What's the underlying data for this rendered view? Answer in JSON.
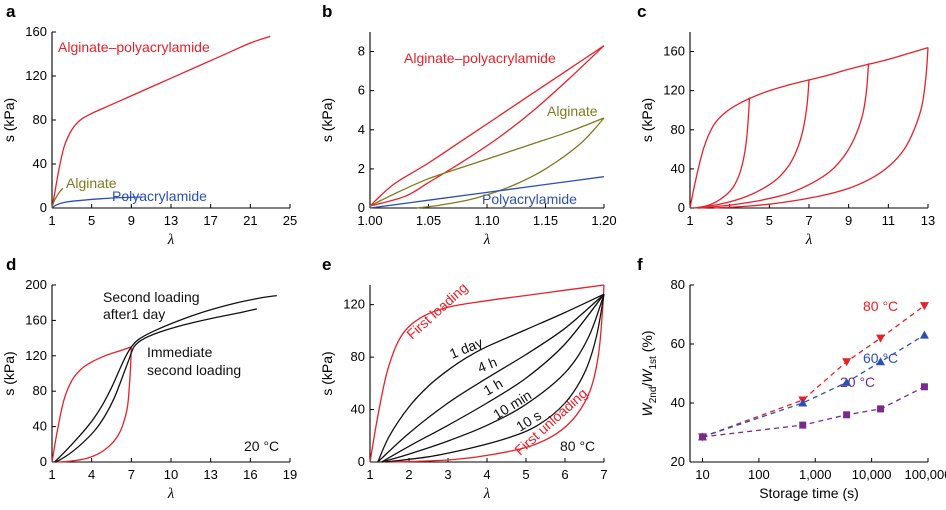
{
  "colors": {
    "red": "#e8202a",
    "olive": "#7f7a1e",
    "blue": "#2c4fb5",
    "black": "#111111",
    "purple": "#7a2a8c"
  },
  "panels": [
    {
      "letter": "a"
    },
    {
      "letter": "b"
    },
    {
      "letter": "c"
    },
    {
      "letter": "d"
    },
    {
      "letter": "e"
    },
    {
      "letter": "f"
    }
  ],
  "chart_data": [
    {
      "panel": "a",
      "type": "line",
      "xlabel": "λ",
      "ylabel": "s (kPa)",
      "xlim": [
        1,
        25
      ],
      "ylim": [
        0,
        160
      ],
      "xticks": [
        1,
        5,
        9,
        13,
        17,
        21,
        25
      ],
      "yticks": [
        0,
        40,
        80,
        120,
        160
      ],
      "series": [
        {
          "name": "Alginate–polyacrylamide",
          "color": "red",
          "x": [
            1,
            1.3,
            1.7,
            2.2,
            2.8,
            3.4,
            4,
            5,
            6,
            8,
            10,
            13,
            16,
            19,
            21,
            23
          ],
          "y": [
            0,
            15,
            35,
            55,
            68,
            76,
            81,
            86,
            90,
            98,
            106,
            118,
            130,
            142,
            150,
            156
          ]
        },
        {
          "name": "Alginate",
          "color": "olive",
          "x": [
            1,
            1.2,
            1.5,
            1.8,
            2.1
          ],
          "y": [
            0,
            6,
            11,
            15,
            18
          ]
        },
        {
          "name": "Polyacrylamide",
          "color": "blue",
          "x": [
            1,
            1.5,
            2.5,
            4,
            6,
            8,
            10
          ],
          "y": [
            0,
            3,
            5.5,
            7,
            8.5,
            9.5,
            10
          ]
        }
      ],
      "labels": [
        {
          "text": "Alginate–polyacrylamide",
          "color": "red"
        },
        {
          "text": "Alginate",
          "color": "olive"
        },
        {
          "text": "Polyacrylamide",
          "color": "blue"
        }
      ]
    },
    {
      "panel": "b",
      "type": "line",
      "xlabel": "λ",
      "ylabel": "s (kPa)",
      "xlim": [
        1.0,
        1.2
      ],
      "ylim": [
        0,
        9
      ],
      "xticks": [
        "1.00",
        "1.05",
        "1.10",
        "1.15",
        "1.20"
      ],
      "yticks": [
        0,
        2,
        4,
        6,
        8
      ],
      "series": [
        {
          "name": "Alginate–polyacrylamide loading",
          "color": "red",
          "x": [
            1.0,
            1.02,
            1.05,
            1.08,
            1.11,
            1.14,
            1.17,
            1.2
          ],
          "y": [
            0.1,
            1.2,
            2.3,
            3.5,
            4.7,
            5.9,
            7.1,
            8.3
          ]
        },
        {
          "name": "Alginate–polyacrylamide unloading",
          "color": "red",
          "x": [
            1.2,
            1.17,
            1.14,
            1.11,
            1.08,
            1.05,
            1.03,
            1.0
          ],
          "y": [
            8.3,
            6.6,
            5.0,
            3.6,
            2.4,
            1.3,
            0.6,
            0.1
          ]
        },
        {
          "name": "Alginate loading",
          "color": "olive",
          "x": [
            1.0,
            1.02,
            1.05,
            1.08,
            1.11,
            1.14,
            1.17,
            1.2
          ],
          "y": [
            0.1,
            0.7,
            1.5,
            2.1,
            2.7,
            3.3,
            3.9,
            4.6
          ]
        },
        {
          "name": "Alginate unloading",
          "color": "olive",
          "x": [
            1.2,
            1.18,
            1.15,
            1.12,
            1.09,
            1.06,
            1.04
          ],
          "y": [
            4.6,
            3.3,
            2.0,
            1.1,
            0.5,
            0.15,
            0
          ]
        },
        {
          "name": "Polyacrylamide",
          "color": "blue",
          "x": [
            1.0,
            1.05,
            1.1,
            1.15,
            1.2
          ],
          "y": [
            0,
            0.4,
            0.8,
            1.2,
            1.6
          ]
        }
      ],
      "labels": [
        {
          "text": "Alginate–polyacrylamide",
          "color": "red"
        },
        {
          "text": "Alginate",
          "color": "olive"
        },
        {
          "text": "Polyacrylamide",
          "color": "blue"
        }
      ]
    },
    {
      "panel": "c",
      "type": "line",
      "xlabel": "λ",
      "ylabel": "s (kPa)",
      "xlim": [
        1,
        13
      ],
      "ylim": [
        0,
        180
      ],
      "xticks": [
        1,
        3,
        5,
        7,
        9,
        11,
        13
      ],
      "yticks": [
        0,
        40,
        80,
        120,
        160
      ],
      "series": [
        {
          "name": "loading envelope",
          "color": "red",
          "x": [
            1,
            1.3,
            1.7,
            2.2,
            2.8,
            3.4,
            4,
            5,
            6,
            7,
            8,
            9,
            10,
            11,
            12,
            13
          ],
          "y": [
            0,
            30,
            62,
            85,
            98,
            106,
            112,
            120,
            126,
            131,
            136,
            142,
            147,
            152,
            158,
            164
          ]
        },
        {
          "name": "unloading to 4",
          "color": "red",
          "x": [
            4,
            3.95,
            3.85,
            3.7,
            3.5,
            3.2,
            2.8,
            2.3,
            1.8,
            1.2
          ],
          "y": [
            113,
            95,
            70,
            50,
            35,
            22,
            13,
            6,
            2,
            0
          ]
        },
        {
          "name": "unloading to 7",
          "color": "red",
          "x": [
            7,
            6.9,
            6.7,
            6.4,
            6,
            5.4,
            4.6,
            3.6,
            2.5,
            1.3
          ],
          "y": [
            131,
            105,
            80,
            60,
            44,
            30,
            19,
            10,
            4,
            0
          ]
        },
        {
          "name": "unloading to 10",
          "color": "red",
          "x": [
            10,
            9.9,
            9.7,
            9.3,
            8.8,
            8.1,
            7.2,
            6,
            4.6,
            3,
            1.5
          ],
          "y": [
            148,
            120,
            95,
            72,
            54,
            38,
            26,
            15,
            8,
            3,
            0
          ]
        },
        {
          "name": "unloading to 13",
          "color": "red",
          "x": [
            13,
            12.9,
            12.7,
            12.3,
            11.8,
            11.1,
            10.2,
            9,
            7.5,
            5.8,
            4,
            2.2
          ],
          "y": [
            164,
            135,
            105,
            80,
            60,
            44,
            31,
            20,
            12,
            6,
            2,
            0
          ]
        }
      ]
    },
    {
      "panel": "d",
      "type": "line",
      "xlabel": "λ",
      "ylabel": "s (kPa)",
      "xlim": [
        1,
        19
      ],
      "ylim": [
        0,
        200
      ],
      "xticks": [
        1,
        4,
        7,
        10,
        13,
        16,
        19
      ],
      "yticks": [
        0,
        40,
        80,
        120,
        160,
        200
      ],
      "series": [
        {
          "name": "First loading",
          "color": "red",
          "x": [
            1,
            1.4,
            1.9,
            2.5,
            3.2,
            4,
            5,
            6,
            7
          ],
          "y": [
            0,
            35,
            70,
            92,
            105,
            113,
            120,
            125,
            130
          ]
        },
        {
          "name": "First unloading",
          "color": "red",
          "x": [
            7,
            6.95,
            6.85,
            6.7,
            6.4,
            6,
            5.4,
            4.6,
            3.6,
            2.4,
            1.3
          ],
          "y": [
            130,
            110,
            85,
            62,
            44,
            30,
            19,
            10,
            4,
            1,
            0
          ]
        },
        {
          "name": "Immediate second loading",
          "color": "black",
          "x": [
            1.3,
            2.2,
            3.2,
            4.2,
            5,
            5.7,
            6.3,
            6.8,
            7.2,
            7.8,
            9,
            11,
            13,
            15,
            16.5
          ],
          "y": [
            0,
            8,
            20,
            35,
            52,
            72,
            95,
            115,
            130,
            138,
            146,
            155,
            162,
            168,
            173
          ]
        },
        {
          "name": "Second loading after 1 day",
          "color": "black",
          "x": [
            1.2,
            2,
            3,
            4,
            4.8,
            5.5,
            6.1,
            6.6,
            7.1,
            7.7,
            9,
            11,
            13,
            15,
            17,
            18
          ],
          "y": [
            0,
            12,
            28,
            46,
            64,
            84,
            104,
            120,
            132,
            140,
            150,
            162,
            172,
            180,
            186,
            188
          ]
        }
      ],
      "labels": [
        {
          "text": "Second loading",
          "color": "black"
        },
        {
          "text": "after1 day",
          "color": "black"
        },
        {
          "text": "Immediate",
          "color": "black"
        },
        {
          "text": "second loading",
          "color": "black"
        },
        {
          "text": "20 °C",
          "color": "black"
        }
      ]
    },
    {
      "panel": "e",
      "type": "line",
      "xlabel": "λ",
      "ylabel": "s (kPa)",
      "xlim": [
        1,
        7
      ],
      "ylim": [
        0,
        135
      ],
      "xticks": [
        1,
        2,
        3,
        4,
        5,
        6,
        7
      ],
      "yticks": [
        0,
        40,
        80,
        120
      ],
      "series": [
        {
          "name": "First loading",
          "color": "red",
          "x": [
            1,
            1.2,
            1.45,
            1.8,
            2.3,
            3,
            4,
            5,
            6,
            7
          ],
          "y": [
            0,
            35,
            70,
            96,
            110,
            118,
            123,
            127,
            131,
            135
          ]
        },
        {
          "name": "First unloading",
          "color": "red",
          "x": [
            7,
            6.95,
            6.85,
            6.65,
            6.3,
            5.8,
            5.1,
            4.2,
            3.2,
            2.2,
            1.3
          ],
          "y": [
            135,
            110,
            80,
            55,
            36,
            22,
            12,
            6,
            2,
            0.5,
            0
          ]
        },
        {
          "name": "1 day",
          "color": "black",
          "x": [
            1.2,
            1.5,
            2,
            2.5,
            3,
            3.5,
            4,
            5,
            6,
            7
          ],
          "y": [
            0,
            20,
            42,
            58,
            70,
            80,
            88,
            101,
            114,
            128
          ]
        },
        {
          "name": "4 h",
          "color": "black",
          "x": [
            1.2,
            2,
            3,
            4,
            5,
            6,
            7
          ],
          "y": [
            0,
            22,
            45,
            64,
            82,
            102,
            128
          ]
        },
        {
          "name": "1 h",
          "color": "black",
          "x": [
            1.3,
            2,
            3,
            4,
            5,
            6,
            7
          ],
          "y": [
            0,
            12,
            28,
            45,
            64,
            90,
            128
          ]
        },
        {
          "name": "10 min",
          "color": "black",
          "x": [
            1.3,
            2,
            3,
            4,
            5,
            6,
            6.6,
            7
          ],
          "y": [
            0,
            6,
            16,
            28,
            44,
            68,
            95,
            128
          ]
        },
        {
          "name": "10 s",
          "color": "black",
          "x": [
            1.4,
            2.5,
            3.5,
            4.5,
            5.3,
            6,
            6.5,
            6.8,
            7
          ],
          "y": [
            0,
            4,
            10,
            18,
            28,
            45,
            68,
            95,
            128
          ]
        }
      ],
      "labels": [
        {
          "text": "First loading",
          "color": "red"
        },
        {
          "text": "First unloading",
          "color": "red"
        },
        {
          "text": "1 day",
          "color": "black"
        },
        {
          "text": "4 h",
          "color": "black"
        },
        {
          "text": "1 h",
          "color": "black"
        },
        {
          "text": "10 min",
          "color": "black"
        },
        {
          "text": "10 s",
          "color": "black"
        },
        {
          "text": "80 °C",
          "color": "black"
        }
      ]
    },
    {
      "panel": "f",
      "type": "scatter",
      "xlabel": "Storage time (s)",
      "ylabel": "W2nd/W1st (%)",
      "xscale": "log",
      "xlim": [
        6,
        100000
      ],
      "ylim": [
        20,
        80
      ],
      "xticks": [
        "10",
        "100",
        "1,000",
        "10,000",
        "100,000"
      ],
      "yticks": [
        20,
        40,
        60,
        80
      ],
      "series": [
        {
          "name": "80 °C",
          "color": "red",
          "marker": "triangle-down",
          "x": [
            10,
            600,
            3600,
            14400,
            86400
          ],
          "y": [
            28.5,
            41,
            54,
            62,
            73
          ]
        },
        {
          "name": "60 °C",
          "color": "blue",
          "marker": "triangle-up",
          "x": [
            10,
            600,
            3600,
            14400,
            86400
          ],
          "y": [
            28.5,
            40,
            47,
            54,
            63
          ]
        },
        {
          "name": "20 °C",
          "color": "purple",
          "marker": "square",
          "x": [
            10,
            600,
            3600,
            14400,
            86400
          ],
          "y": [
            28.5,
            32.5,
            36,
            38,
            45.5
          ]
        }
      ],
      "labels": [
        {
          "text": "80 °C",
          "color": "red"
        },
        {
          "text": "60 °C",
          "color": "blue"
        },
        {
          "text": "20 °C",
          "color": "purple"
        }
      ]
    }
  ]
}
